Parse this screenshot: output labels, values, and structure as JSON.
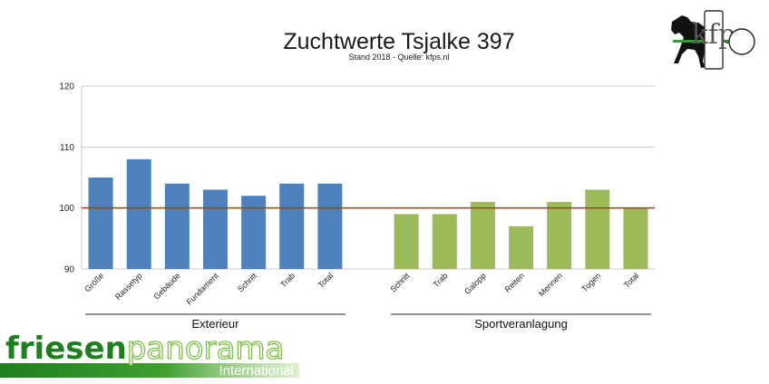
{
  "chart_data": {
    "type": "bar",
    "title": "Zuchtwerte Tsjalke 397",
    "subtitle": "Stand 2018 - Quelle: kfps.nl",
    "ylim": [
      90,
      120
    ],
    "yticks": [
      90,
      100,
      110,
      120
    ],
    "grid": true,
    "reference_line": 100,
    "groups": [
      {
        "name": "Exterieur",
        "color": "#4f81bd",
        "categories": [
          "Größe",
          "Rassetyp",
          "Gebäude",
          "Fundament",
          "Schritt",
          "Trab",
          "Total"
        ],
        "values": [
          105,
          108,
          104,
          103,
          102,
          104,
          104
        ]
      },
      {
        "name": "Sportveranlagung",
        "color": "#9bbb59",
        "categories": [
          "Schritt",
          "Trab",
          "Galopp",
          "Reiten",
          "Mennen",
          "Tugen",
          "Total"
        ],
        "values": [
          99,
          99,
          101,
          97,
          101,
          103,
          100
        ]
      }
    ],
    "reference_color": "#e02020"
  },
  "logo": {
    "name": "kfp-horse-logo",
    "letters": "kfp"
  },
  "brand": {
    "part1": "friesen",
    "part2": "panorama",
    "sub": "International",
    "color_dark": "#1e7f1e",
    "color_light": "#7ac143"
  }
}
